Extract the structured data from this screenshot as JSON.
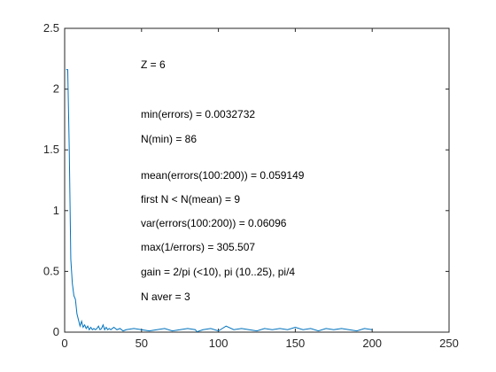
{
  "chart_data": {
    "type": "line",
    "title": "",
    "xlabel": "",
    "ylabel": "",
    "xlim": [
      0,
      250
    ],
    "ylim": [
      0,
      2.5
    ],
    "xticks": [
      0,
      50,
      100,
      150,
      200,
      250
    ],
    "yticks": [
      0,
      0.5,
      1,
      1.5,
      2,
      2.5
    ],
    "xtick_labels": [
      "0",
      "50",
      "100",
      "150",
      "200",
      "250"
    ],
    "ytick_labels": [
      "0",
      "0.5",
      "1",
      "1.5",
      "2",
      "2.5"
    ],
    "grid": false,
    "line_color": "#0072BD",
    "series": [
      {
        "x": [
          1,
          2,
          3,
          4,
          5,
          6,
          7,
          8,
          9,
          10,
          11,
          12,
          13,
          14,
          15,
          16,
          17,
          18,
          19,
          20,
          21,
          22,
          23,
          24,
          25,
          26,
          27,
          28,
          29,
          30,
          32,
          34,
          36,
          38,
          40,
          45,
          50,
          55,
          60,
          65,
          70,
          75,
          80,
          85,
          86,
          90,
          95,
          100,
          105,
          110,
          115,
          120,
          125,
          130,
          135,
          140,
          145,
          150,
          155,
          160,
          165,
          170,
          175,
          180,
          185,
          190,
          195,
          200
        ],
        "y": [
          2.16,
          2.16,
          1.5,
          0.6,
          0.4,
          0.3,
          0.27,
          0.15,
          0.1,
          0.05,
          0.09,
          0.04,
          0.06,
          0.03,
          0.05,
          0.02,
          0.04,
          0.02,
          0.03,
          0.02,
          0.03,
          0.05,
          0.02,
          0.03,
          0.06,
          0.02,
          0.04,
          0.02,
          0.03,
          0.02,
          0.04,
          0.02,
          0.03,
          0.01,
          0.02,
          0.03,
          0.02,
          0.01,
          0.02,
          0.03,
          0.01,
          0.02,
          0.03,
          0.02,
          0.003,
          0.02,
          0.03,
          0.01,
          0.05,
          0.02,
          0.03,
          0.02,
          0.01,
          0.03,
          0.02,
          0.03,
          0.02,
          0.04,
          0.02,
          0.03,
          0.01,
          0.03,
          0.02,
          0.03,
          0.02,
          0.01,
          0.03,
          0.02
        ]
      }
    ],
    "annotations": [
      "Z = 6",
      "min(errors) = 0.0032732",
      "N(min) = 86",
      "mean(errors(100:200)) = 0.059149",
      "first N < N(mean) = 9",
      "var(errors(100:200)) = 0.06096",
      "max(1/errors) = 305.507",
      "gain = 2/pi (<10), pi (10..25), pi/4",
      "N aver = 3"
    ]
  }
}
